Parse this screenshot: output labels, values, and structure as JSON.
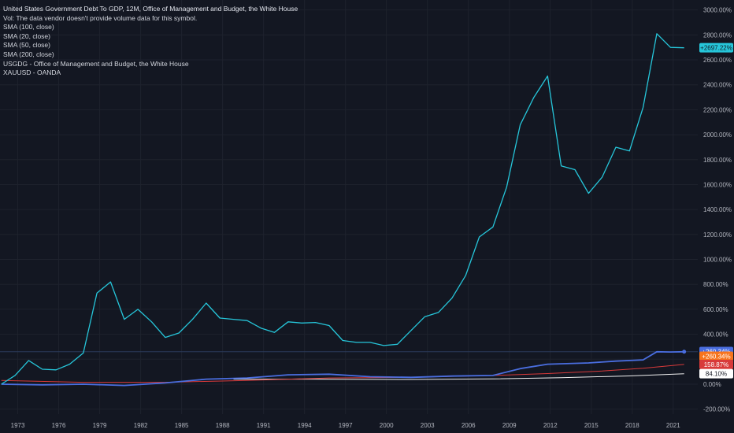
{
  "legend": {
    "title": "United States Government Debt To GDP, 12M, Office of Management and Budget, the White House",
    "vol": "Vol: The data vendor doesn't provide volume data for this symbol.",
    "sma100": "SMA (100, close)",
    "sma20": "SMA (20, close)",
    "sma50": "SMA (50, close)",
    "sma200": "SMA (200, close)",
    "usgdg": "USGDG - Office of Management and Budget, the White House",
    "xauusd": "XAUUSD - OANDA"
  },
  "colors": {
    "background": "#131722",
    "grid": "#1e222d",
    "axis_text": "#b2b5be",
    "gold_line": "#26c6da",
    "debt_line": "#4a6ee0",
    "sma_red": "#d83a3a",
    "sma_white": "#f0f0f0",
    "crosshair": "#2a3a5a"
  },
  "chart_data": {
    "type": "line",
    "title": "United States Government Debt To GDP, 12M, Office of Management and Budget, the White House",
    "y_unit": "% change",
    "ylim": [
      -240,
      3080
    ],
    "xlim": [
      1971.7,
      2022.8
    ],
    "grid": true,
    "y_ticks": [
      "3000.00%",
      "2800.00%",
      "2600.00%",
      "2400.00%",
      "2200.00%",
      "2000.00%",
      "1800.00%",
      "1600.00%",
      "1400.00%",
      "1200.00%",
      "1000.00%",
      "800.00%",
      "600.00%",
      "400.00%",
      "200.00%",
      "0.00%",
      "-200.00%"
    ],
    "y_tick_values": [
      3000,
      2800,
      2600,
      2400,
      2200,
      2000,
      1800,
      1600,
      1400,
      1200,
      1000,
      800,
      600,
      400,
      200,
      0,
      -200
    ],
    "x_ticks": [
      "1973",
      "1976",
      "1979",
      "1982",
      "1985",
      "1988",
      "1991",
      "1994",
      "1997",
      "2000",
      "2003",
      "2006",
      "2009",
      "2012",
      "2015",
      "2018",
      "2021"
    ],
    "x_tick_values": [
      1973,
      1976,
      1979,
      1982,
      1985,
      1988,
      1991,
      1994,
      1997,
      2000,
      2003,
      2006,
      2009,
      2012,
      2015,
      2018,
      2021
    ],
    "series": [
      {
        "name": "XAUUSD - OANDA",
        "color": "#26c6da",
        "x": [
          1971.8,
          1972.8,
          1973.8,
          1974.8,
          1975.8,
          1976.8,
          1977.8,
          1978.8,
          1979.8,
          1980.8,
          1981.8,
          1982.8,
          1983.8,
          1984.8,
          1985.8,
          1986.8,
          1987.8,
          1988.8,
          1989.8,
          1990.8,
          1991.8,
          1992.8,
          1993.8,
          1994.8,
          1995.8,
          1996.8,
          1997.8,
          1998.8,
          1999.8,
          2000.8,
          2001.8,
          2002.8,
          2003.8,
          2004.8,
          2005.8,
          2006.8,
          2007.8,
          2008.8,
          2009.8,
          2010.8,
          2011.8,
          2012.8,
          2013.8,
          2014.8,
          2015.8,
          2016.8,
          2017.8,
          2018.8,
          2019.8,
          2020.8,
          2021.8
        ],
        "values": [
          0,
          70,
          190,
          120,
          115,
          160,
          250,
          730,
          820,
          520,
          600,
          500,
          375,
          410,
          520,
          650,
          530,
          520,
          510,
          450,
          415,
          500,
          490,
          495,
          470,
          350,
          335,
          335,
          310,
          320,
          430,
          540,
          575,
          690,
          870,
          1180,
          1260,
          1580,
          2080,
          2300,
          2470,
          1750,
          1720,
          1530,
          1660,
          1900,
          1870,
          2220,
          2810,
          2700,
          2697
        ]
      },
      {
        "name": "USGDG - Office of Management and Budget, the White House",
        "color": "#4a6ee0",
        "x": [
          1971.8,
          1974.8,
          1977.8,
          1980.8,
          1983.8,
          1986.8,
          1989.8,
          1992.8,
          1995.8,
          1998.8,
          2001.8,
          2004.8,
          2007.8,
          2009.8,
          2011.8,
          2014.8,
          2016.8,
          2018.8,
          2019.8,
          2020.8,
          2021.8
        ],
        "values": [
          0,
          -5,
          0,
          -10,
          10,
          40,
          50,
          75,
          80,
          60,
          55,
          65,
          70,
          125,
          160,
          170,
          185,
          195,
          260,
          258,
          260
        ]
      },
      {
        "name": "SMA (200, close)",
        "color": "#d83a3a",
        "x": [
          1971.8,
          1977.8,
          1983.8,
          1989.8,
          1995.8,
          2001.8,
          2007.8,
          2011.8,
          2015.8,
          2018.8,
          2021.8
        ],
        "values": [
          30,
          15,
          15,
          30,
          50,
          55,
          70,
          85,
          105,
          128,
          158
        ]
      },
      {
        "name": "SMA (100, close)",
        "color": "#f0f0f0",
        "x": [
          1988.8,
          1994.8,
          2001.8,
          2007.8,
          2012.8,
          2017.8,
          2021.8
        ],
        "values": [
          40,
          40,
          38,
          42,
          52,
          66,
          84
        ]
      }
    ],
    "price_tags": [
      {
        "label": "+2697.22%",
        "value": 2697,
        "color": "#26c6da",
        "text_color": "#131722"
      },
      {
        "label": "+260.34%",
        "value": 262,
        "color": "#4a6ee0",
        "text_color": "#ffffff"
      },
      {
        "label": "+260.34%",
        "value": 224,
        "color": "#f7741d",
        "text_color": "#ffffff"
      },
      {
        "label": "158.87%",
        "value": 158,
        "color": "#d83a3a",
        "text_color": "#ffffff"
      },
      {
        "label": "84.10%",
        "value": 84,
        "color": "#ffffff",
        "text_color": "#131722"
      }
    ],
    "crosshair_y": 260
  }
}
